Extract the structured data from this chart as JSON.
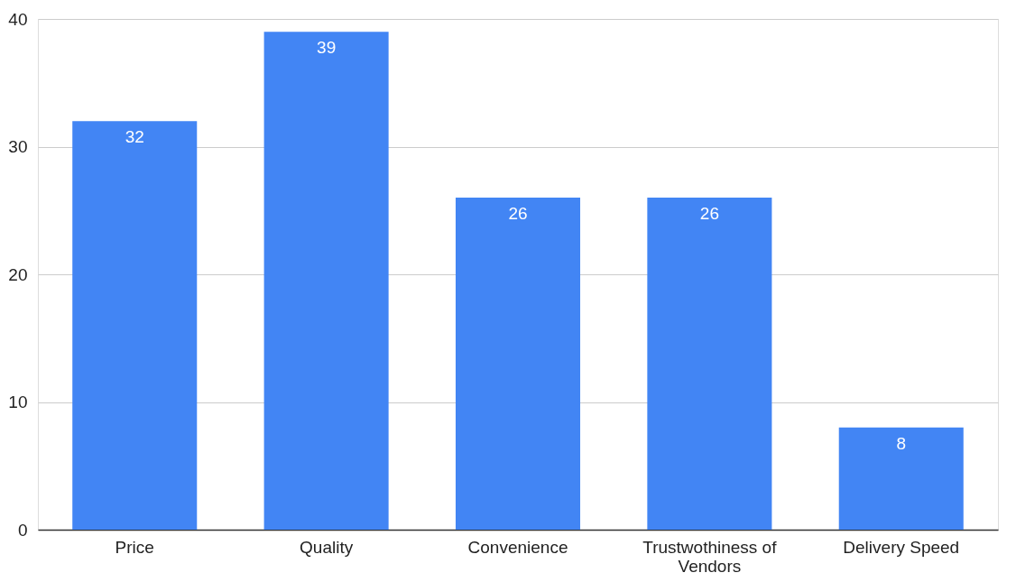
{
  "chart_data": {
    "type": "bar",
    "categories": [
      "Price",
      "Quality",
      "Convenience",
      "Trustwothiness of Vendors",
      "Delivery Speed"
    ],
    "values": [
      32,
      39,
      26,
      26,
      8
    ],
    "color": "#4285f4",
    "ylim": [
      0,
      40
    ],
    "yticks": [
      0,
      10,
      20,
      30,
      40
    ],
    "grid": "y",
    "data_labels": true
  }
}
